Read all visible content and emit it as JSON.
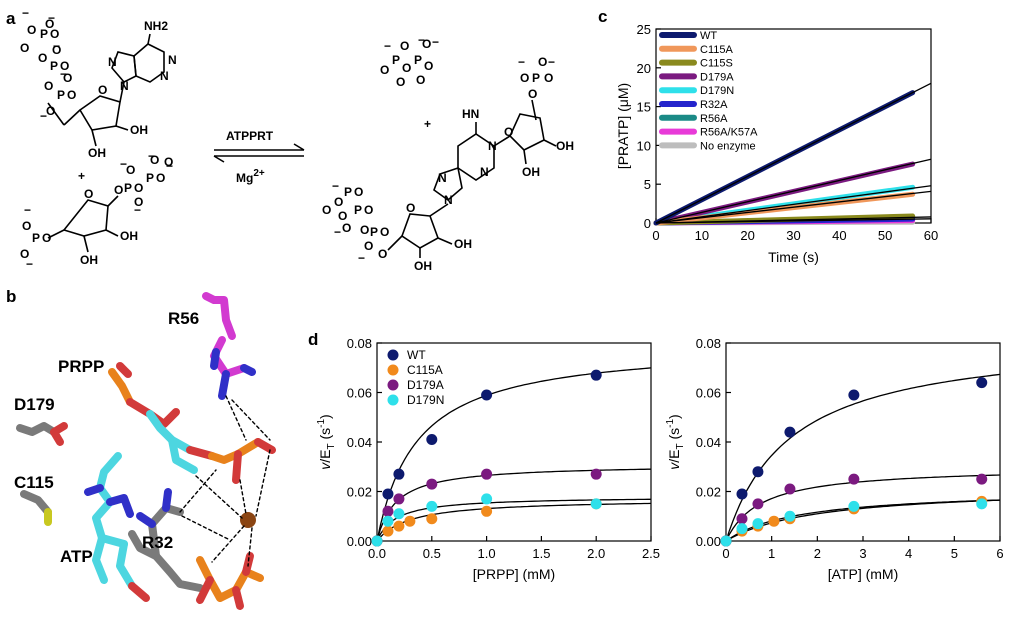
{
  "panels": {
    "a": {
      "label": "a",
      "enzyme": "ATPPRT",
      "cofactor": "Mg",
      "cofactor_charge": "2+",
      "plus": "+",
      "atoms": {
        "nh2": "NH2",
        "hn": "HN",
        "oh": "OH",
        "o": "O",
        "p": "P",
        "n": "N",
        "minus": "−"
      }
    },
    "b": {
      "label": "b",
      "residues": [
        "R56",
        "PRPP",
        "D179",
        "C115",
        "ATP",
        "R32"
      ]
    },
    "c": {
      "label": "c"
    },
    "d": {
      "label": "d"
    }
  },
  "chart_data": [
    {
      "id": "c",
      "type": "line",
      "xlabel": "Time (s)",
      "ylabel": "[PRATP] (μM)",
      "xlim": [
        0,
        60
      ],
      "ylim": [
        0,
        25
      ],
      "xticks": [
        0,
        10,
        20,
        30,
        40,
        50,
        60
      ],
      "yticks": [
        0,
        5,
        10,
        15,
        20,
        25
      ],
      "legend_position": "top-left",
      "fit_slopes": [
        0.3,
        0.137,
        0.068,
        0.08,
        0.013,
        0.009
      ],
      "series": [
        {
          "name": "WT",
          "color": "#0d1a6e",
          "x": [
            0,
            56
          ],
          "y": [
            0,
            16.8
          ]
        },
        {
          "name": "C115A",
          "color": "#f0975a",
          "x": [
            0,
            56
          ],
          "y": [
            0,
            3.7
          ]
        },
        {
          "name": "C115S",
          "color": "#8a8a1e",
          "x": [
            0,
            56
          ],
          "y": [
            0,
            0.9
          ]
        },
        {
          "name": "D179A",
          "color": "#7b1a80",
          "x": [
            0,
            56
          ],
          "y": [
            0,
            7.6
          ]
        },
        {
          "name": "D179N",
          "color": "#2ee0ea",
          "x": [
            0,
            56
          ],
          "y": [
            0,
            4.6
          ]
        },
        {
          "name": "R32A",
          "color": "#2424cc",
          "x": [
            0,
            56
          ],
          "y": [
            0,
            0.5
          ]
        },
        {
          "name": "R56A",
          "color": "#1a8a86",
          "x": [
            0,
            56
          ],
          "y": [
            0,
            0.8
          ]
        },
        {
          "name": "R56A/K57A",
          "color": "#e83ad8",
          "x": [
            0,
            56
          ],
          "y": [
            0,
            0.3
          ]
        },
        {
          "name": "No enzyme",
          "color": "#bdbdbd",
          "x": [
            0,
            56
          ],
          "y": [
            0,
            0.1
          ]
        }
      ]
    },
    {
      "id": "d-left",
      "type": "scatter",
      "xlabel": "[PRPP] (mM)",
      "ylabel_main": "v",
      "ylabel_sub": "T",
      "ylabel_unit": "s",
      "ylabel_exp": "-1",
      "xlim": [
        0,
        2.5
      ],
      "ylim": [
        0,
        0.08
      ],
      "xticks": [
        "0.0",
        "0.5",
        "1.0",
        "1.5",
        "2.0",
        "2.5"
      ],
      "yticks": [
        "0.00",
        "0.02",
        "0.04",
        "0.06",
        "0.08"
      ],
      "legend_position": "top-left",
      "series": [
        {
          "name": "WT",
          "color": "#0d1a6e",
          "x": [
            0,
            0.1,
            0.2,
            0.5,
            1.0,
            2.0
          ],
          "y": [
            0,
            0.019,
            0.027,
            0.041,
            0.059,
            0.067
          ],
          "fit": {
            "vmax": 0.08,
            "km": 0.36
          }
        },
        {
          "name": "C115A",
          "color": "#f18a1c",
          "x": [
            0,
            0.1,
            0.2,
            0.3,
            0.5,
            1.0,
            2.0
          ],
          "y": [
            0,
            0.004,
            0.006,
            0.008,
            0.009,
            0.012,
            0.015
          ],
          "fit": {
            "vmax": 0.017,
            "km": 0.3
          }
        },
        {
          "name": "D179A",
          "color": "#7b1a80",
          "x": [
            0,
            0.1,
            0.2,
            0.5,
            1.0,
            2.0
          ],
          "y": [
            0,
            0.012,
            0.017,
            0.023,
            0.027,
            0.027
          ],
          "fit": {
            "vmax": 0.031,
            "km": 0.17
          }
        },
        {
          "name": "D179N",
          "color": "#2ee0ea",
          "x": [
            0,
            0.1,
            0.2,
            0.5,
            1.0,
            2.0
          ],
          "y": [
            0,
            0.008,
            0.011,
            0.014,
            0.017,
            0.015
          ],
          "fit": {
            "vmax": 0.018,
            "km": 0.17
          }
        }
      ]
    },
    {
      "id": "d-right",
      "type": "scatter",
      "xlabel": "[ATP] (mM)",
      "ylabel_main": "v",
      "ylabel_sub": "T",
      "ylabel_unit": "s",
      "ylabel_exp": "-1",
      "xlim": [
        0,
        6
      ],
      "ylim": [
        0,
        0.08
      ],
      "xticks": [
        "0",
        "1",
        "2",
        "3",
        "4",
        "5",
        "6"
      ],
      "yticks": [
        "0.00",
        "0.02",
        "0.04",
        "0.06",
        "0.08"
      ],
      "series": [
        {
          "name": "WT",
          "color": "#0d1a6e",
          "x": [
            0,
            0.35,
            0.7,
            1.4,
            2.8,
            5.6
          ],
          "y": [
            0,
            0.019,
            0.028,
            0.044,
            0.059,
            0.064
          ],
          "fit": {
            "vmax": 0.083,
            "km": 1.4
          }
        },
        {
          "name": "C115A",
          "color": "#f18a1c",
          "x": [
            0,
            0.35,
            0.7,
            1.05,
            1.4,
            2.8,
            5.6
          ],
          "y": [
            0,
            0.004,
            0.006,
            0.008,
            0.009,
            0.013,
            0.016
          ],
          "fit": {
            "vmax": 0.022,
            "km": 2.0
          }
        },
        {
          "name": "D179A",
          "color": "#7b1a80",
          "x": [
            0,
            0.35,
            0.7,
            1.4,
            2.8,
            5.6
          ],
          "y": [
            0,
            0.009,
            0.015,
            0.021,
            0.025,
            0.025
          ],
          "fit": {
            "vmax": 0.03,
            "km": 0.75
          }
        },
        {
          "name": "D179N",
          "color": "#2ee0ea",
          "x": [
            0,
            0.35,
            0.7,
            1.4,
            2.8,
            5.6
          ],
          "y": [
            0,
            0.005,
            0.007,
            0.01,
            0.014,
            0.015
          ],
          "fit": {
            "vmax": 0.021,
            "km": 1.6
          }
        }
      ]
    }
  ]
}
